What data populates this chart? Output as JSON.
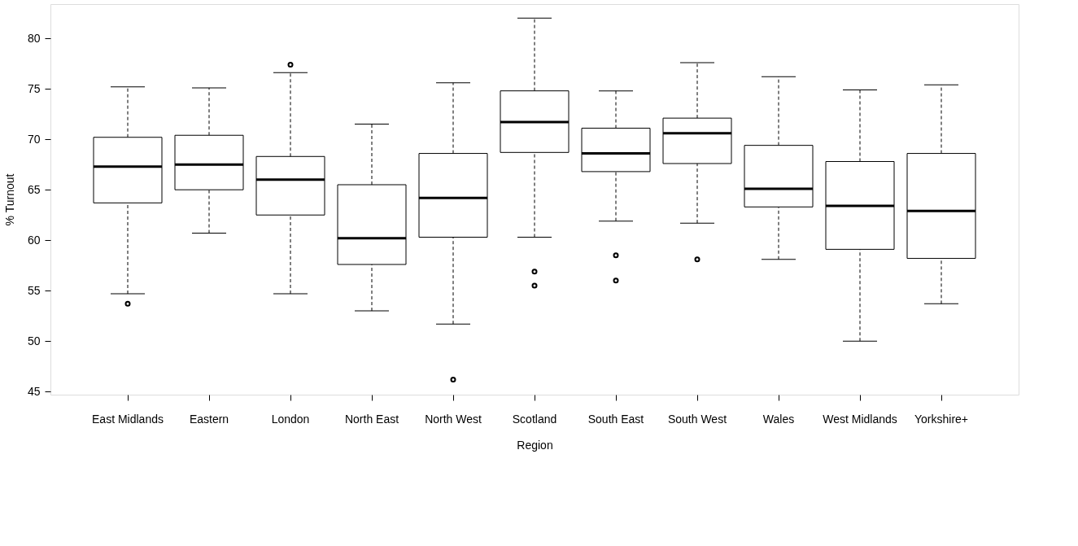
{
  "chart_data": {
    "type": "box",
    "xlabel": "Region",
    "ylabel": "% Turnout",
    "categories": [
      "East Midlands",
      "Eastern",
      "London",
      "North East",
      "North West",
      "Scotland",
      "South East",
      "South West",
      "Wales",
      "West Midlands",
      "Yorkshire+"
    ],
    "boxes": [
      {
        "low": 54.7,
        "q1": 63.7,
        "median": 67.3,
        "q3": 70.2,
        "high": 75.2,
        "outliers": [
          53.7
        ]
      },
      {
        "low": 60.7,
        "q1": 65.0,
        "median": 67.5,
        "q3": 70.4,
        "high": 75.1
      },
      {
        "low": 54.7,
        "q1": 62.5,
        "median": 66.0,
        "q3": 68.3,
        "high": 76.6,
        "outliers": [
          77.4
        ]
      },
      {
        "low": 53.0,
        "q1": 57.6,
        "median": 60.2,
        "q3": 65.5,
        "high": 71.5
      },
      {
        "low": 51.7,
        "q1": 60.3,
        "median": 64.2,
        "q3": 68.6,
        "high": 75.6,
        "outliers": [
          46.2
        ]
      },
      {
        "low": 60.3,
        "q1": 68.7,
        "median": 71.7,
        "q3": 74.8,
        "high": 82.0,
        "outliers": [
          56.9,
          55.5
        ]
      },
      {
        "low": 61.9,
        "q1": 66.8,
        "median": 68.6,
        "q3": 71.1,
        "high": 74.8,
        "outliers": [
          58.5,
          56.0
        ]
      },
      {
        "low": 61.7,
        "q1": 67.6,
        "median": 70.6,
        "q3": 72.1,
        "high": 77.6,
        "outliers": [
          58.1
        ]
      },
      {
        "low": 58.1,
        "q1": 63.3,
        "median": 65.1,
        "q3": 69.4,
        "high": 76.2
      },
      {
        "low": 50.0,
        "q1": 59.1,
        "median": 63.4,
        "q3": 67.8,
        "high": 74.9
      },
      {
        "low": 53.7,
        "q1": 58.2,
        "median": 62.9,
        "q3": 68.6,
        "high": 75.4
      }
    ],
    "ylim": [
      44.7,
      83.4
    ],
    "yticks": [
      45,
      50,
      55,
      60,
      65,
      70,
      75,
      80
    ]
  }
}
